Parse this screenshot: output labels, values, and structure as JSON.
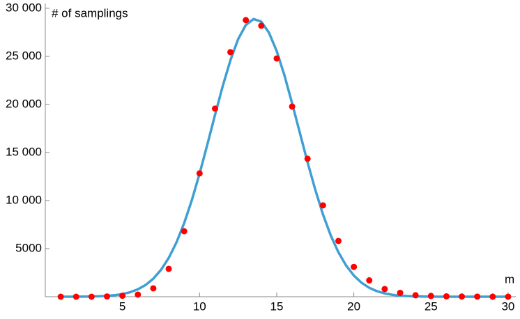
{
  "chart_data": {
    "type": "scatter",
    "x_label": "m",
    "y_label": "# of samplings",
    "xlim": [
      0,
      30.5
    ],
    "ylim": [
      0,
      30500
    ],
    "xticks": [
      5,
      10,
      15,
      20,
      25,
      30
    ],
    "yticks": [
      {
        "value": 5000,
        "label": "5000"
      },
      {
        "value": 10000,
        "label": "10 000"
      },
      {
        "value": 15000,
        "label": "15 000"
      },
      {
        "value": 20000,
        "label": "20 000"
      },
      {
        "value": 25000,
        "label": "25 000"
      },
      {
        "value": 30000,
        "label": "30 000"
      }
    ],
    "series": [
      {
        "type": "line",
        "color": "#3f9fd3",
        "x": [
          1,
          1.5,
          2,
          2.5,
          3,
          3.5,
          4,
          4.5,
          5,
          5.5,
          6,
          6.5,
          7,
          7.5,
          8,
          8.5,
          9,
          9.5,
          10,
          10.5,
          11,
          11.5,
          12,
          12.5,
          13,
          13.5,
          14,
          14.5,
          15,
          15.5,
          16,
          16.5,
          17,
          17.5,
          18,
          18.5,
          19,
          19.5,
          20,
          20.5,
          21,
          21.5,
          22,
          22.5,
          23,
          23.5,
          24,
          24.5,
          25,
          25.5,
          26,
          27,
          28,
          29,
          30
        ],
        "values": [
          1,
          3,
          6,
          13,
          25,
          48,
          88,
          159,
          277,
          468,
          768,
          1219,
          1873,
          2792,
          4031,
          5641,
          7650,
          10054,
          12803,
          15808,
          18901,
          21906,
          24594,
          26790,
          28264,
          28883,
          28611,
          27455,
          25548,
          23033,
          20114,
          17051,
          13988,
          11127,
          8554,
          6387,
          4624,
          3245,
          2205,
          1451,
          928,
          572,
          344,
          199,
          113,
          61,
          32,
          16,
          8,
          4,
          2,
          1,
          0,
          0,
          0
        ]
      },
      {
        "type": "scatter",
        "color": "#ff0000",
        "x": [
          1,
          2,
          3,
          4,
          5,
          6,
          7,
          8,
          9,
          10,
          11,
          12,
          13,
          14,
          15,
          16,
          17,
          18,
          19,
          20,
          21,
          22,
          23,
          24,
          25,
          26,
          27,
          28,
          29,
          30
        ],
        "values": [
          0,
          0,
          0,
          30,
          100,
          220,
          870,
          2900,
          6810,
          12830,
          19570,
          25430,
          28770,
          28190,
          24780,
          19780,
          14350,
          9500,
          5800,
          3100,
          1700,
          800,
          400,
          150,
          80,
          40,
          20,
          10,
          5,
          2
        ]
      }
    ]
  }
}
